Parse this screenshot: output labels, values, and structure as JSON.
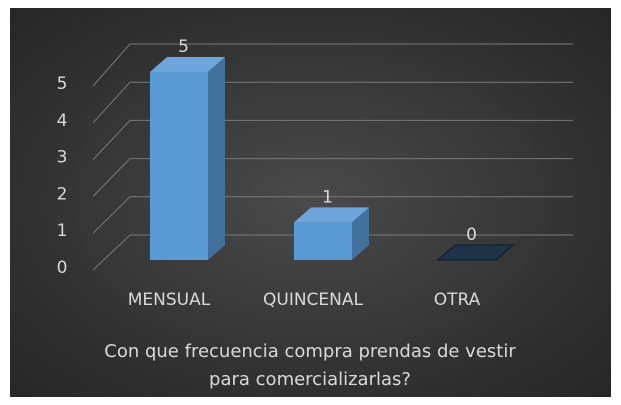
{
  "chart_data": {
    "type": "bar3d",
    "title": "Con que frecuencia compra prendas de vestir para comercializarlas?",
    "categories": [
      "MENSUAL",
      "QUINCENAL",
      "OTRA"
    ],
    "values": [
      5,
      1,
      0
    ],
    "color": "#5b9bd5",
    "ylim": [
      0,
      5
    ],
    "yticks": [
      0,
      1,
      2,
      3,
      4,
      5
    ],
    "grid": true
  }
}
